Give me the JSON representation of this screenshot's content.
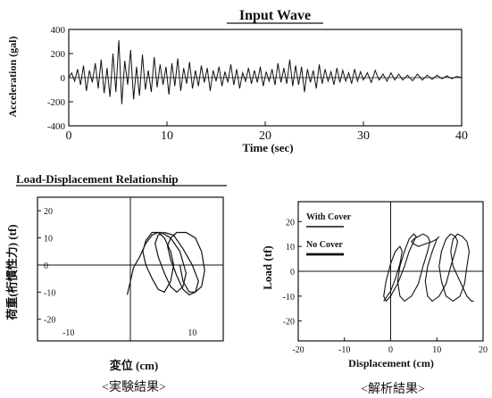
{
  "chart_data": [
    {
      "id": "input_wave",
      "type": "line",
      "title": "Input Wave",
      "xlabel": "Time (sec)",
      "ylabel": "Acceleration (gal)",
      "xlim": [
        0,
        40
      ],
      "ylim": [
        -400,
        400
      ],
      "xticks": [
        0,
        10,
        20,
        30,
        40
      ],
      "yticks": [
        400,
        200,
        0,
        -200,
        -400
      ],
      "series": [
        {
          "x": [
            0.0,
            0.3,
            0.6,
            0.9,
            1.2,
            1.5,
            1.8,
            2.1,
            2.4,
            2.7,
            3.0,
            3.3,
            3.6,
            3.9,
            4.2,
            4.5,
            4.8,
            5.1,
            5.4,
            5.7,
            6.0,
            6.3,
            6.6,
            6.9,
            7.2,
            7.5,
            7.8,
            8.1,
            8.4,
            8.7,
            9.0,
            9.3,
            9.6,
            9.9,
            10.2,
            10.5,
            10.8,
            11.1,
            11.4,
            11.7,
            12.0,
            12.3,
            12.6,
            12.9,
            13.2,
            13.5,
            13.8,
            14.1,
            14.4,
            14.7,
            15.0,
            15.3,
            15.6,
            15.9,
            16.2,
            16.5,
            16.8,
            17.1,
            17.4,
            17.7,
            18.0,
            18.3,
            18.6,
            18.9,
            19.2,
            19.5,
            19.8,
            20.1,
            20.4,
            20.7,
            21.0,
            21.3,
            21.6,
            21.9,
            22.2,
            22.5,
            22.8,
            23.1,
            23.4,
            23.7,
            24.0,
            24.3,
            24.6,
            24.9,
            25.2,
            25.5,
            25.8,
            26.1,
            26.4,
            26.7,
            27.0,
            27.3,
            27.6,
            27.9,
            28.2,
            28.5,
            28.8,
            29.1,
            29.4,
            29.7,
            30.0,
            30.4,
            30.8,
            31.2,
            31.6,
            32.0,
            32.4,
            32.8,
            33.2,
            33.6,
            34.0,
            34.5,
            35.0,
            35.5,
            36.0,
            36.5,
            37.0,
            37.5,
            38.0,
            38.5,
            39.0,
            39.5,
            40.0
          ],
          "y": [
            0,
            40,
            -30,
            70,
            -60,
            100,
            -110,
            60,
            -40,
            120,
            -90,
            150,
            -130,
            80,
            -160,
            200,
            -120,
            310,
            -220,
            140,
            -60,
            230,
            -180,
            90,
            -150,
            190,
            -100,
            60,
            -120,
            170,
            -80,
            110,
            -60,
            90,
            -140,
            120,
            -70,
            160,
            -110,
            80,
            -50,
            130,
            -90,
            60,
            -70,
            100,
            -40,
            80,
            -110,
            60,
            -30,
            90,
            -70,
            50,
            -40,
            110,
            -60,
            70,
            -90,
            40,
            -30,
            80,
            -50,
            60,
            -40,
            90,
            -70,
            50,
            -30,
            70,
            -60,
            120,
            -40,
            80,
            -50,
            150,
            -70,
            100,
            -60,
            90,
            -120,
            70,
            -40,
            60,
            -90,
            110,
            -50,
            70,
            -30,
            50,
            -60,
            80,
            -40,
            60,
            -30,
            40,
            -50,
            70,
            -30,
            50,
            -20,
            40,
            -40,
            60,
            -20,
            30,
            -30,
            40,
            -20,
            30,
            -20,
            20,
            -25,
            30,
            -20,
            20,
            -15,
            20,
            -10,
            15,
            -10,
            10,
            0
          ]
        }
      ]
    },
    {
      "id": "experiment",
      "type": "line",
      "section_title": "Load-Displacement Relationship",
      "xlabel": "変位 (cm)",
      "ylabel": "荷重(桁慣性力) (tf)",
      "caption": "<実験結果>",
      "xlim": [
        -15,
        15
      ],
      "ylim": [
        -28,
        25
      ],
      "xticks": [
        -10,
        10
      ],
      "yticks": [
        20,
        10,
        0,
        -10,
        -20
      ],
      "series": [
        {
          "x": [
            -0.5,
            0,
            0.5,
            1.5,
            2.5,
            3.5,
            4.5,
            5.5,
            6.5,
            7,
            6.5,
            5.5,
            4.5,
            3.5,
            2.5,
            2,
            2.5,
            3.5,
            5,
            6.5,
            8,
            9,
            8.5,
            7.5,
            6.5,
            5.5,
            4.5,
            4,
            4.5,
            5.5,
            7,
            8.5,
            10,
            11,
            10.5,
            9.5,
            8.5,
            7.5,
            6.5,
            6,
            6.5,
            7.5,
            9,
            10.5,
            11.5,
            12,
            11.5,
            10.5,
            9.5,
            8.5,
            8
          ],
          "y": [
            -11,
            -6,
            -1,
            3,
            8,
            11,
            12,
            10,
            5,
            0,
            -6,
            -10,
            -9,
            -5,
            0,
            5,
            9,
            12,
            12,
            10,
            5,
            -3,
            -8,
            -10,
            -8,
            -3,
            3,
            8,
            11,
            12,
            11,
            6,
            0,
            -6,
            -10,
            -11,
            -9,
            -4,
            2,
            7,
            10,
            12,
            12,
            10,
            5,
            -2,
            -8,
            -10,
            -10,
            -6,
            0
          ]
        }
      ]
    },
    {
      "id": "analysis",
      "type": "line",
      "xlabel": "Displacement (cm)",
      "ylabel": "Load (tf)",
      "caption": "<解析結果>",
      "xlim": [
        -20,
        20
      ],
      "ylim": [
        -28,
        28
      ],
      "xticks": [
        -20,
        -10,
        0,
        10,
        20
      ],
      "yticks": [
        20,
        10,
        0,
        -10,
        -20
      ],
      "legend": [
        "With Cover",
        "No Cover"
      ],
      "legend_position": "top-left",
      "series": [
        {
          "x": [
            -1.5,
            0,
            1,
            2,
            2.5,
            2,
            1,
            0,
            -1,
            -1.5,
            -1,
            0,
            1.5,
            3,
            4,
            5,
            5.5,
            5,
            4,
            3,
            2,
            1.5,
            2,
            3,
            4.5,
            6,
            7,
            8,
            8.5,
            8,
            7,
            6,
            5,
            4.5,
            5,
            6,
            7.5,
            9,
            10,
            10.5,
            10,
            9,
            8,
            7.5,
            8,
            9,
            10.5,
            12,
            13,
            14,
            14.5,
            14,
            13,
            12,
            11,
            10.5,
            11,
            12,
            13.5,
            15,
            16,
            16.5,
            17,
            16.5,
            15.5,
            14.5,
            13.5,
            13,
            13.5,
            15,
            16.5,
            17.5,
            18
          ],
          "y": [
            -12,
            -8,
            -3,
            3,
            8,
            10,
            8,
            3,
            -4,
            -10,
            -12,
            -10,
            -5,
            2,
            8,
            12,
            14,
            15,
            13,
            8,
            2,
            -4,
            -10,
            -12,
            -10,
            -5,
            2,
            8,
            12,
            14,
            15,
            14,
            13,
            12,
            11,
            10,
            11,
            12,
            13,
            14,
            13,
            8,
            2,
            -4,
            -10,
            -12,
            -10,
            -5,
            2,
            8,
            12,
            14,
            15,
            13,
            8,
            2,
            -4,
            -10,
            -12,
            -10,
            -5,
            2,
            8,
            12,
            14,
            15,
            13,
            8,
            2,
            -4,
            -10,
            -12,
            -12
          ]
        }
      ]
    }
  ]
}
